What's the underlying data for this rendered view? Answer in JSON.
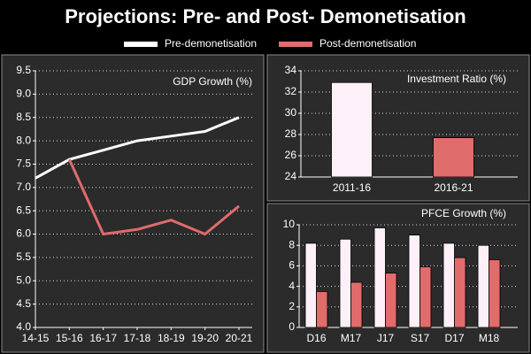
{
  "title": "Projections: Pre- and Post- Demonetisation",
  "chart_data": [
    {
      "type": "line",
      "title": "GDP Growth (%)",
      "categories": [
        "14-15",
        "15-16",
        "16-17",
        "17-18",
        "18-19",
        "19-20",
        "20-21"
      ],
      "series": [
        {
          "name": "Pre-demonetisation",
          "color": "#ffffff",
          "values": [
            7.2,
            7.6,
            7.8,
            8.0,
            8.1,
            8.2,
            8.5
          ]
        },
        {
          "name": "Post-demonetisation",
          "color": "#e06c6c",
          "values": [
            null,
            7.6,
            6.0,
            6.1,
            6.3,
            6.0,
            6.6
          ]
        }
      ],
      "ylim": [
        4.0,
        9.5
      ],
      "yticks": [
        {
          "value": 4,
          "label": "4.0"
        },
        4.5,
        {
          "value": 5,
          "label": "5.0"
        },
        5.5,
        {
          "value": 6,
          "label": "6.0"
        },
        6.5,
        {
          "value": 7,
          "label": "7.0"
        },
        7.5,
        {
          "value": 8,
          "label": "8.0"
        },
        8.5,
        {
          "value": 9,
          "label": "9.0"
        },
        9.5
      ],
      "grid": true
    },
    {
      "type": "bar",
      "title": "Investment Ratio (%)",
      "categories": [
        "2011-16",
        "2016-21"
      ],
      "values": [
        32.9,
        27.7
      ],
      "colors": [
        "#fdf0f8",
        "#e06c6c"
      ],
      "ylim": [
        24,
        34
      ],
      "yticks": [
        24,
        26,
        28,
        30,
        32,
        34
      ],
      "grid": true
    },
    {
      "type": "bar",
      "title": "PFCE Growth (%)",
      "categories": [
        "D16",
        "M17",
        "J17",
        "S17",
        "D17",
        "M18"
      ],
      "series": [
        {
          "name": "Pre-demonetisation",
          "color": "#fdf0f8",
          "values": [
            8.2,
            8.6,
            9.7,
            9.0,
            8.2,
            8.0
          ]
        },
        {
          "name": "Post-demonetisation",
          "color": "#e06c6c",
          "values": [
            3.5,
            4.4,
            5.3,
            5.9,
            6.8,
            6.6
          ]
        }
      ],
      "ylim": [
        0,
        10
      ],
      "yticks": [
        0,
        2,
        4,
        6,
        8,
        10
      ],
      "grid": true
    }
  ]
}
